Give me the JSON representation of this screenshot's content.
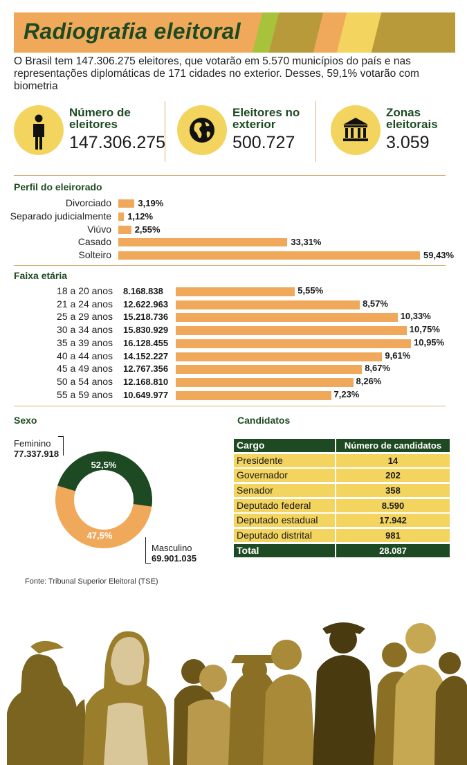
{
  "header": {
    "title": "Radiografia eleitoral"
  },
  "intro": "O Brasil tem 147.306.275 eleitores, que votarão em 5.570 municípios do país e nas representações diplomáticas de 171 cidades no exterior. Desses, 59,1% votarão com biometria",
  "stats": [
    {
      "label_line1": "Número de",
      "label_line2": "eleitores",
      "value": "147.306.275",
      "icon": "person-icon"
    },
    {
      "label_line1": "Eleitores no",
      "label_line2": "exterior",
      "value": "500.727",
      "icon": "globe-icon"
    },
    {
      "label_line1": "Zonas",
      "label_line2": "eleitorais",
      "value": "3.059",
      "icon": "building-icon"
    }
  ],
  "colors": {
    "green": "#1d4a22",
    "orange": "#f0a95a",
    "yellow": "#f3d45f",
    "olive": "#b89a3a"
  },
  "chart_data": [
    {
      "type": "bar",
      "title": "Perfil do eleirorado",
      "orientation": "horizontal",
      "categories": [
        "Divorciado",
        "Separado judicialmente",
        "Viúvo",
        "Casado",
        "Solteiro"
      ],
      "values": [
        3.19,
        1.12,
        2.55,
        33.31,
        59.43
      ],
      "value_labels": [
        "3,19%",
        "1,12%",
        "2,55%",
        "33,31%",
        "59,43%"
      ]
    },
    {
      "type": "bar",
      "title": "Faixa etária",
      "orientation": "horizontal",
      "categories": [
        "18 a 20 anos",
        "21 a 24 anos",
        "25 a 29 anos",
        "30 a 34 anos",
        "35 a 39 anos",
        "40 a 44 anos",
        "45 a 49 anos",
        "50 a 54 anos",
        "55 a 59 anos"
      ],
      "counts": [
        "8.168.838",
        "12.622.963",
        "15.218.736",
        "15.830.929",
        "16.128.455",
        "14.152.227",
        "12.767.356",
        "12.168.810",
        "10.649.977"
      ],
      "values": [
        5.55,
        8.57,
        10.33,
        10.75,
        10.95,
        9.61,
        8.67,
        8.26,
        7.23
      ],
      "value_labels": [
        "5,55%",
        "8,57%",
        "10,33%",
        "10,75%",
        "10,95%",
        "9,61%",
        "8,67%",
        "8,26%",
        "7,23%"
      ]
    },
    {
      "type": "pie",
      "title": "Sexo",
      "categories": [
        "Feminino",
        "Masculino"
      ],
      "counts": [
        "77.337.918",
        "69.901.035"
      ],
      "values": [
        52.5,
        47.5
      ],
      "value_labels": [
        "52,5%",
        "47,5%"
      ]
    },
    {
      "type": "table",
      "title": "Candidatos",
      "columns": [
        "Cargo",
        "Número de candidatos"
      ],
      "rows": [
        [
          "Presidente",
          "14"
        ],
        [
          "Governador",
          "202"
        ],
        [
          "Senador",
          "358"
        ],
        [
          "Deputado federal",
          "8.590"
        ],
        [
          "Deputado estadual",
          "17.942"
        ],
        [
          "Deputado distrital",
          "981"
        ]
      ],
      "total": [
        "Total",
        "28.087"
      ]
    }
  ],
  "source": "Fonte: Tribunal Superior Eleitoral (TSE)"
}
